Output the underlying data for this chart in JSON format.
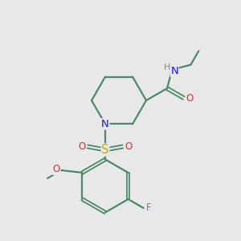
{
  "bg_color": "#e8e8e8",
  "atom_colors": {
    "C": "#4a8a6a",
    "N": "#1414ff",
    "O": "#ff2020",
    "S": "#ccaa00",
    "F": "#cc44cc",
    "H": "#888888"
  },
  "bond_color": "#4a8a6a",
  "bond_lw": 1.6,
  "font_size": 8.5,
  "fig_size": [
    3.0,
    3.0
  ],
  "dpi": 100
}
